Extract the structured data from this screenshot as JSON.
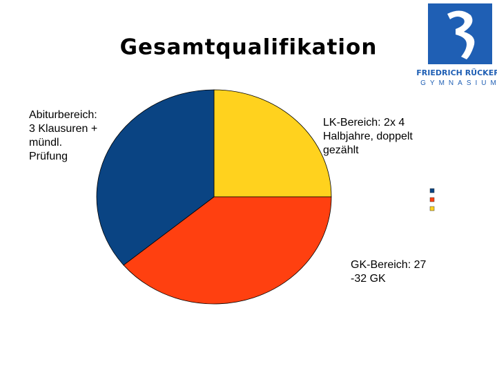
{
  "chart_data": {
    "type": "pie",
    "title": "Gesamtqualifikation",
    "categories": [
      "LK-Bereich: 2x 4\nHalbjahre, doppelt\ngezählt",
      "GK-Bereich: 27\n-32 GK",
      "Abiturbereich:\n3 Klausuren +\nmündl.\nPrüfung"
    ],
    "values": [
      25,
      39,
      36
    ],
    "colors": [
      "#ffd21e",
      "#ff4010",
      "#0a4483"
    ],
    "legend": "right"
  },
  "logo": {
    "name": "FRIEDRICH RÜCKERT",
    "subtitle": "GYMNASIUM"
  }
}
